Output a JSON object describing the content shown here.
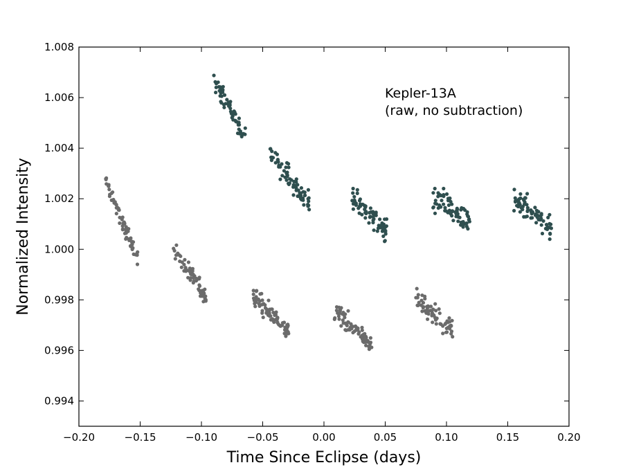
{
  "chart_data": {
    "type": "scatter",
    "title": "",
    "xlabel": "Time Since Eclipse (days)",
    "ylabel": "Normalized Intensity",
    "xlim": [
      -0.2,
      0.2
    ],
    "ylim": [
      0.993,
      1.008
    ],
    "xticks": [
      -0.2,
      -0.15,
      -0.1,
      -0.05,
      0.0,
      0.05,
      0.1,
      0.15,
      0.2
    ],
    "xtick_labels": [
      "−0.20",
      "−0.15",
      "−0.10",
      "−0.05",
      "0.00",
      "0.05",
      "0.10",
      "0.15",
      "0.20"
    ],
    "yticks": [
      0.994,
      0.996,
      0.998,
      1.0,
      1.002,
      1.004,
      1.006,
      1.008
    ],
    "ytick_labels": [
      "0.994",
      "0.996",
      "0.998",
      "1.000",
      "1.002",
      "1.004",
      "1.006",
      "1.008"
    ],
    "annotation": [
      "Kepler-13A",
      "(raw, no subtraction)"
    ],
    "series": [
      {
        "name": "dark",
        "color": "#2f4f4f",
        "clusters": [
          {
            "x_range": [
              -0.091,
              -0.064
            ],
            "y_range": [
              1.0067,
              1.0045
            ],
            "spread": 0.00035,
            "n": 60
          },
          {
            "x_range": [
              -0.044,
              -0.012
            ],
            "y_range": [
              1.0038,
              1.0018
            ],
            "spread": 0.0004,
            "n": 75
          },
          {
            "x_range": [
              0.023,
              0.052
            ],
            "y_range": [
              1.0021,
              1.0007
            ],
            "spread": 0.0004,
            "n": 75
          },
          {
            "x_range": [
              0.089,
              0.119
            ],
            "y_range": [
              1.0021,
              1.0011
            ],
            "spread": 0.0005,
            "n": 75
          },
          {
            "x_range": [
              0.155,
              0.186
            ],
            "y_range": [
              1.002,
              1.0009
            ],
            "spread": 0.0004,
            "n": 75
          }
        ]
      },
      {
        "name": "gray",
        "color": "#6b6b6b",
        "clusters": [
          {
            "x_range": [
              -0.178,
              -0.152
            ],
            "y_range": [
              1.0027,
              0.9996
            ],
            "spread": 0.0003,
            "n": 70
          },
          {
            "x_range": [
              -0.123,
              -0.096
            ],
            "y_range": [
              1.0,
              0.9981
            ],
            "spread": 0.0003,
            "n": 70
          },
          {
            "x_range": [
              -0.058,
              -0.028
            ],
            "y_range": [
              0.9981,
              0.9967
            ],
            "spread": 0.00035,
            "n": 75
          },
          {
            "x_range": [
              0.007,
              0.039
            ],
            "y_range": [
              0.9976,
              0.9963
            ],
            "spread": 0.00035,
            "n": 75
          },
          {
            "x_range": [
              0.075,
              0.105
            ],
            "y_range": [
              0.998,
              0.9968
            ],
            "spread": 0.00035,
            "n": 70
          }
        ]
      }
    ]
  }
}
